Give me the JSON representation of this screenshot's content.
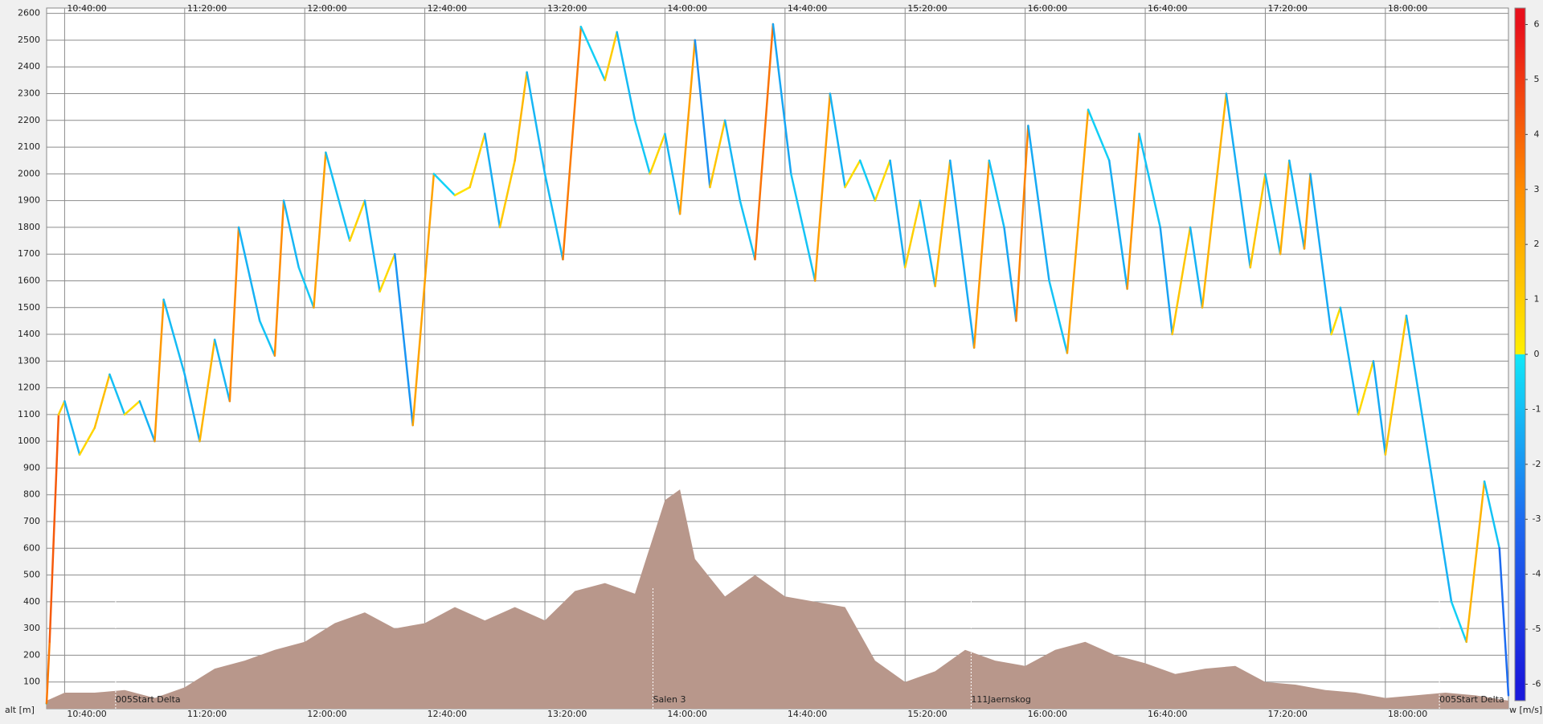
{
  "chart_data": {
    "type": "line",
    "y_label": "alt [m]",
    "x": [
      "10:34:00",
      "10:35:00",
      "10:38:00",
      "10:40:00",
      "10:45:00",
      "10:50:00",
      "10:55:00",
      "11:00:00",
      "11:05:00",
      "11:10:00",
      "11:13:00",
      "11:20:00",
      "11:25:00",
      "11:30:00",
      "11:35:00",
      "11:38:00",
      "11:45:00",
      "11:50:00",
      "11:53:00",
      "11:58:00",
      "12:03:00",
      "12:07:00",
      "12:15:00",
      "12:20:00",
      "12:25:00",
      "12:30:00",
      "12:36:00",
      "12:43:00",
      "12:50:00",
      "12:55:00",
      "13:00:00",
      "13:05:00",
      "13:10:00",
      "13:14:00",
      "13:20:00",
      "13:26:00",
      "13:32:00",
      "13:40:00",
      "13:44:00",
      "13:50:00",
      "13:55:00",
      "14:00:00",
      "14:05:00",
      "14:10:00",
      "14:15:00",
      "14:20:00",
      "14:25:00",
      "14:30:00",
      "14:36:00",
      "14:42:00",
      "14:50:00",
      "14:55:00",
      "15:00:00",
      "15:05:00",
      "15:10:00",
      "15:15:00",
      "15:20:00",
      "15:25:00",
      "15:30:00",
      "15:35:00",
      "15:43:00",
      "15:48:00",
      "15:53:00",
      "15:57:00",
      "16:01:00",
      "16:08:00",
      "16:14:00",
      "16:21:00",
      "16:28:00",
      "16:34:00",
      "16:38:00",
      "16:45:00",
      "16:49:00",
      "16:55:00",
      "16:59:00",
      "17:07:00",
      "17:15:00",
      "17:20:00",
      "17:25:00",
      "17:28:00",
      "17:33:00",
      "17:35:00",
      "17:42:00",
      "17:45:00",
      "17:51:00",
      "17:56:00",
      "18:00:00",
      "18:07:00",
      "18:15:00",
      "18:22:00",
      "18:27:00",
      "18:33:00",
      "18:38:00",
      "18:41:00"
    ],
    "values": [
      20,
      250,
      1100,
      1150,
      950,
      1050,
      1250,
      1100,
      1150,
      1000,
      1530,
      1250,
      1000,
      1380,
      1150,
      1800,
      1450,
      1320,
      1900,
      1650,
      1500,
      2080,
      1750,
      1900,
      1560,
      1700,
      1060,
      2000,
      1920,
      1950,
      2150,
      1800,
      2050,
      2380,
      2000,
      1680,
      2550,
      2350,
      2530,
      2200,
      2000,
      2150,
      1850,
      2500,
      1950,
      2200,
      1900,
      1680,
      2560,
      2000,
      1600,
      2300,
      1950,
      2050,
      1900,
      2050,
      1650,
      1900,
      1580,
      2050,
      1350,
      2050,
      1800,
      1450,
      2180,
      1600,
      1330,
      2240,
      2050,
      1570,
      2150,
      1800,
      1400,
      1800,
      1500,
      2300,
      1650,
      2000,
      1700,
      2050,
      1720,
      2000,
      1400,
      1500,
      1100,
      1300,
      950,
      1470,
      900,
      400,
      250,
      850,
      600,
      50
    ],
    "vario": [
      0,
      3.5,
      4.2,
      1.0,
      -1.2,
      0.8,
      1.5,
      -1.0,
      0.6,
      -1.3,
      2.6,
      -1.1,
      -1.4,
      1.8,
      -1.2,
      3.1,
      -1.3,
      -0.9,
      3.0,
      -1.2,
      -0.8,
      2.4,
      -1.0,
      0.9,
      -1.3,
      0.7,
      -2.0,
      2.3,
      -0.5,
      0.4,
      1.0,
      -1.4,
      1.2,
      1.7,
      -1.2,
      -1.1,
      3.4,
      -0.6,
      1.1,
      -1.1,
      -0.8,
      0.8,
      -1.2,
      2.4,
      -2.1,
      1.3,
      -1.2,
      -0.9,
      3.6,
      -1.6,
      -0.9,
      2.5,
      -1.3,
      0.6,
      -0.7,
      0.7,
      -1.4,
      1.0,
      -1.2,
      1.8,
      -1.5,
      2.6,
      -1.0,
      -1.6,
      3.2,
      -1.5,
      -0.9,
      2.3,
      -0.6,
      -1.4,
      2.7,
      -0.9,
      -1.7,
      1.3,
      -1.3,
      1.8,
      -1.4,
      1.3,
      -1.1,
      2.0,
      -1.2,
      2.4,
      -1.5,
      0.6,
      -1.2,
      0.7,
      -1.5,
      1.3,
      -1.2,
      -1.3,
      -0.6,
      1.8,
      -0.9,
      -3.0
    ],
    "terrain": {
      "color": "#b8978b",
      "x": [
        "10:34:00",
        "10:40:00",
        "10:50:00",
        "11:00:00",
        "11:10:00",
        "11:20:00",
        "11:30:00",
        "11:40:00",
        "11:50:00",
        "12:00:00",
        "12:10:00",
        "12:20:00",
        "12:30:00",
        "12:40:00",
        "12:50:00",
        "13:00:00",
        "13:10:00",
        "13:20:00",
        "13:30:00",
        "13:40:00",
        "13:50:00",
        "14:00:00",
        "14:05:00",
        "14:10:00",
        "14:20:00",
        "14:30:00",
        "14:40:00",
        "14:50:00",
        "15:00:00",
        "15:10:00",
        "15:20:00",
        "15:30:00",
        "15:40:00",
        "15:50:00",
        "16:00:00",
        "16:10:00",
        "16:20:00",
        "16:30:00",
        "16:40:00",
        "16:50:00",
        "17:00:00",
        "17:10:00",
        "17:20:00",
        "17:30:00",
        "17:40:00",
        "17:50:00",
        "18:00:00",
        "18:10:00",
        "18:20:00",
        "18:30:00",
        "18:41:00"
      ],
      "values": [
        30,
        60,
        60,
        70,
        40,
        80,
        150,
        180,
        220,
        250,
        320,
        360,
        300,
        320,
        380,
        330,
        380,
        330,
        440,
        470,
        430,
        780,
        820,
        560,
        420,
        500,
        420,
        400,
        380,
        180,
        100,
        140,
        220,
        180,
        160,
        220,
        250,
        200,
        170,
        130,
        150,
        160,
        100,
        90,
        70,
        60,
        40,
        50,
        60,
        50,
        30
      ]
    },
    "waypoints": [
      {
        "x": "10:57:00",
        "label": "005Start Delta"
      },
      {
        "x": "13:56:00",
        "label": "Salen 3"
      },
      {
        "x": "15:42:00",
        "label": "111Jaernskog"
      },
      {
        "x": "18:18:00",
        "label": "005Start Delta"
      }
    ],
    "xlim": [
      "10:34:00",
      "18:41:00"
    ],
    "xticks": [
      "10:40:00",
      "11:20:00",
      "12:00:00",
      "12:40:00",
      "13:20:00",
      "14:00:00",
      "14:40:00",
      "15:20:00",
      "16:00:00",
      "16:40:00",
      "17:20:00",
      "18:00:00"
    ],
    "ylim": [
      0,
      2620
    ],
    "yticks": [
      100,
      200,
      300,
      400,
      500,
      600,
      700,
      800,
      900,
      1000,
      1100,
      1200,
      1300,
      1400,
      1500,
      1600,
      1700,
      1800,
      1900,
      2000,
      2100,
      2200,
      2300,
      2400,
      2500,
      2600
    ],
    "grid": true,
    "colorbar": {
      "label": "w [m/s]",
      "lim": [
        -6.3,
        6.3
      ],
      "ticks": [
        -6,
        -5,
        -4,
        -3,
        -2,
        -1,
        0,
        1,
        2,
        3,
        4,
        5,
        6
      ],
      "stops": [
        {
          "value": -6,
          "color": "#1a1adc"
        },
        {
          "value": -3,
          "color": "#1e6cf0"
        },
        {
          "value": 0,
          "color": "#10e8f8"
        },
        {
          "value": 0,
          "color": "#fff000"
        },
        {
          "value": 3,
          "color": "#ff8c00"
        },
        {
          "value": 6,
          "color": "#e8101c"
        }
      ]
    }
  }
}
